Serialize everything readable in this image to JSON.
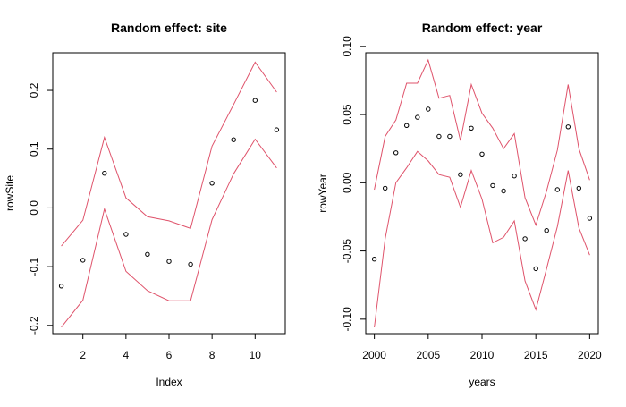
{
  "colors": {
    "band": "#DF536B",
    "point": "#000000",
    "axis": "#000000",
    "background": "#ffffff"
  },
  "chart_data": [
    {
      "type": "line",
      "title": "Random effect: site",
      "xlabel": "Index",
      "ylabel": "rowSite",
      "xlim": [
        0.6,
        11.4
      ],
      "ylim": [
        -0.214,
        0.264
      ],
      "x_ticks": [
        2,
        4,
        6,
        8,
        10
      ],
      "x_tick_labels": [
        "2",
        "4",
        "6",
        "8",
        "10"
      ],
      "y_ticks": [
        -0.2,
        -0.1,
        0.0,
        0.1,
        0.2
      ],
      "y_tick_labels": [
        "-0.2",
        "-0.1",
        "0.0",
        "0.1",
        "0.2"
      ],
      "grid": false,
      "x": [
        1,
        2,
        3,
        4,
        5,
        6,
        7,
        8,
        9,
        10,
        11
      ],
      "series": [
        {
          "style": "points",
          "values": [
            -0.133,
            -0.089,
            0.059,
            -0.045,
            -0.079,
            -0.091,
            -0.096,
            0.042,
            0.116,
            0.183,
            0.133
          ]
        },
        {
          "style": "line",
          "values": [
            -0.065,
            -0.021,
            0.12,
            0.017,
            -0.015,
            -0.022,
            -0.035,
            0.105,
            0.176,
            0.248,
            0.197
          ]
        },
        {
          "style": "line",
          "values": [
            -0.203,
            -0.157,
            -0.002,
            -0.108,
            -0.141,
            -0.158,
            -0.158,
            -0.02,
            0.058,
            0.117,
            0.068
          ]
        }
      ]
    },
    {
      "type": "line",
      "title": "Random effect: year",
      "xlabel": "years",
      "ylabel": "rowYear",
      "xlim": [
        1999.2,
        2020.8
      ],
      "ylim": [
        -0.1106,
        0.0953
      ],
      "x_ticks": [
        2000,
        2005,
        2010,
        2015,
        2020
      ],
      "x_tick_labels": [
        "2000",
        "2005",
        "2010",
        "2015",
        "2020"
      ],
      "y_ticks": [
        -0.1,
        -0.05,
        0.0,
        0.05,
        0.1
      ],
      "y_tick_labels": [
        "-0.10",
        "-0.05",
        "0.00",
        "0.05",
        "0.10"
      ],
      "grid": false,
      "x": [
        2000,
        2001,
        2002,
        2003,
        2004,
        2005,
        2006,
        2007,
        2008,
        2009,
        2010,
        2011,
        2012,
        2013,
        2014,
        2015,
        2016,
        2017,
        2018,
        2019,
        2020
      ],
      "series": [
        {
          "style": "points",
          "values": [
            -0.056,
            -0.004,
            0.022,
            0.042,
            0.048,
            0.054,
            0.034,
            0.034,
            0.006,
            0.04,
            0.021,
            -0.002,
            -0.006,
            0.005,
            -0.041,
            -0.063,
            -0.035,
            -0.005,
            0.041,
            -0.004,
            -0.026
          ]
        },
        {
          "style": "line",
          "values": [
            -0.005,
            0.034,
            0.046,
            0.073,
            0.073,
            0.09,
            0.062,
            0.064,
            0.031,
            0.072,
            0.051,
            0.04,
            0.025,
            0.036,
            -0.011,
            -0.031,
            -0.006,
            0.024,
            0.072,
            0.025,
            0.002
          ]
        },
        {
          "style": "line",
          "values": [
            -0.106,
            -0.041,
            0.0,
            0.011,
            0.023,
            0.016,
            0.006,
            0.004,
            -0.018,
            0.009,
            -0.012,
            -0.044,
            -0.04,
            -0.028,
            -0.072,
            -0.093,
            -0.063,
            -0.032,
            0.009,
            -0.033,
            -0.053
          ]
        }
      ]
    }
  ]
}
